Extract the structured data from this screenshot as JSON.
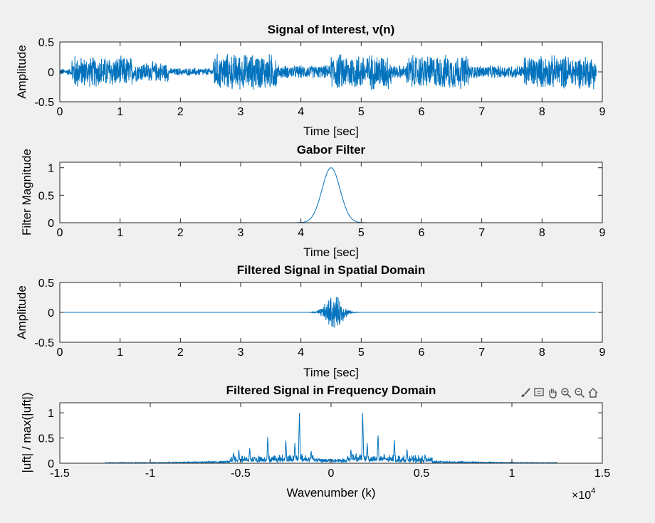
{
  "colors": {
    "line": "#0072bd",
    "axes_bg": "#ffffff",
    "figure_bg": "#f0f0f0"
  },
  "toolbar": {
    "icons": [
      "brush-icon",
      "data-tips-icon",
      "pan-icon",
      "zoom-in-icon",
      "zoom-out-icon",
      "home-icon"
    ]
  },
  "chart_data": [
    {
      "type": "line",
      "title": "Signal of Interest, v(n)",
      "xlabel": "Time [sec]",
      "ylabel": "Amplitude",
      "xlim": [
        0,
        9
      ],
      "ylim": [
        -0.5,
        0.5
      ],
      "xticks": [
        "0",
        "1",
        "2",
        "3",
        "4",
        "5",
        "6",
        "7",
        "8",
        "9"
      ],
      "yticks": [
        "-0.5",
        "0",
        "0.5"
      ],
      "series": [
        {
          "segments": [
            {
              "x": [
                0.0,
                0.2
              ],
              "amp": 0.06
            },
            {
              "x": [
                0.2,
                0.33
              ],
              "amp": 0.32
            },
            {
              "x": [
                0.33,
                1.2
              ],
              "amp": 0.28
            },
            {
              "x": [
                1.2,
                1.8
              ],
              "amp": 0.18
            },
            {
              "x": [
                1.8,
                2.55
              ],
              "amp": 0.07
            },
            {
              "x": [
                2.55,
                3.6
              ],
              "amp": 0.33
            },
            {
              "x": [
                3.6,
                4.5
              ],
              "amp": 0.12
            },
            {
              "x": [
                4.5,
                5.5
              ],
              "amp": 0.33
            },
            {
              "x": [
                5.5,
                5.75
              ],
              "amp": 0.12
            },
            {
              "x": [
                5.75,
                6.8
              ],
              "amp": 0.31
            },
            {
              "x": [
                6.8,
                7.7
              ],
              "amp": 0.12
            },
            {
              "x": [
                7.7,
                8.9
              ],
              "amp": 0.3
            }
          ]
        }
      ]
    },
    {
      "type": "line",
      "title": "Gabor Filter",
      "xlabel": "Time [sec]",
      "ylabel": "Filter Magnitude",
      "xlim": [
        0,
        9
      ],
      "ylim": [
        0,
        1.1
      ],
      "xticks": [
        "0",
        "1",
        "2",
        "3",
        "4",
        "5",
        "6",
        "7",
        "8",
        "9"
      ],
      "yticks": [
        "0",
        "0.5",
        "1"
      ],
      "series": [
        {
          "center": 4.5,
          "width": 0.15,
          "peak": 1.0
        }
      ]
    },
    {
      "type": "line",
      "title": "Filtered Signal in Spatial Domain",
      "xlabel": "Time [sec]",
      "ylabel": "Amplitude",
      "xlim": [
        0,
        9
      ],
      "ylim": [
        -0.5,
        0.5
      ],
      "xticks": [
        "0",
        "1",
        "2",
        "3",
        "4",
        "5",
        "6",
        "7",
        "8",
        "9"
      ],
      "yticks": [
        "-0.5",
        "0",
        "0.5"
      ],
      "series": [
        {
          "center": 4.55,
          "width": 0.13,
          "peak": 0.32
        }
      ]
    },
    {
      "type": "line",
      "title": "Filtered Signal in Frequency Domain",
      "xlabel": "Wavenumber (k)",
      "ylabel": "|uft| / max(|uft|)",
      "xlim": [
        -15000,
        15000
      ],
      "ylim": [
        0,
        1.2
      ],
      "xticks": [
        "-1.5",
        "-1",
        "-0.5",
        "0",
        "0.5",
        "1",
        "1.5"
      ],
      "yticks": [
        "0",
        "0.5",
        "1"
      ],
      "x_multiplier": "×10",
      "x_multiplier_exp": "4",
      "series": [
        {
          "support": [
            -12500,
            12500
          ],
          "peaks": [
            {
              "x": -1750,
              "y": 1.0
            },
            {
              "x": 1750,
              "y": 1.0
            },
            {
              "x": -3500,
              "y": 0.52
            },
            {
              "x": 3500,
              "y": 0.46
            },
            {
              "x": -2500,
              "y": 0.45
            },
            {
              "x": 2600,
              "y": 0.58
            },
            {
              "x": -2000,
              "y": 0.4
            },
            {
              "x": 2000,
              "y": 0.4
            },
            {
              "x": -1100,
              "y": 0.25
            },
            {
              "x": 1100,
              "y": 0.28
            },
            {
              "x": -4500,
              "y": 0.3
            },
            {
              "x": 4200,
              "y": 0.3
            },
            {
              "x": -5100,
              "y": 0.28
            },
            {
              "x": -5400,
              "y": 0.22
            },
            {
              "x": 5200,
              "y": 0.18
            }
          ]
        }
      ]
    }
  ]
}
